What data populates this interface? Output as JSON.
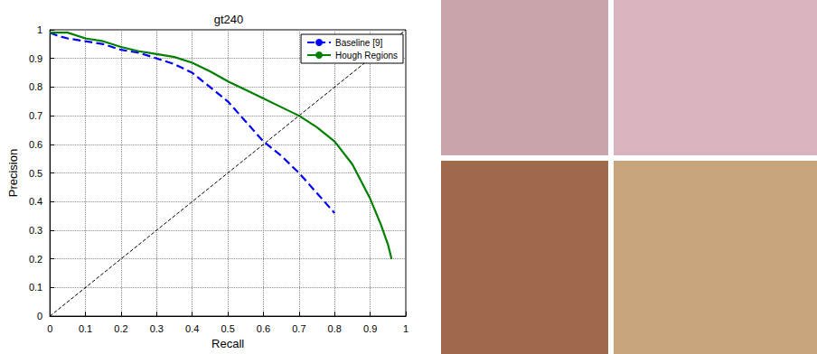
{
  "chart_data": {
    "type": "line",
    "title": "gt240",
    "x_label": "Recall",
    "y_label": "Precision",
    "xlim": [
      0,
      1
    ],
    "ylim": [
      0,
      1
    ],
    "xticks": [
      0,
      0.1,
      0.2,
      0.3,
      0.4,
      0.5,
      0.6,
      0.7,
      0.8,
      0.9,
      1
    ],
    "yticks": [
      0,
      0.1,
      0.2,
      0.3,
      0.4,
      0.5,
      0.6,
      0.7,
      0.8,
      0.9,
      1
    ],
    "grid": true,
    "legend": "upper right",
    "series": [
      {
        "name": "Baseline [9]",
        "color": "#0000ff",
        "line_style": "dashed",
        "x": [
          0,
          0.02,
          0.05,
          0.1,
          0.15,
          0.2,
          0.25,
          0.3,
          0.35,
          0.4,
          0.45,
          0.5,
          0.55,
          0.6,
          0.65,
          0.7,
          0.75,
          0.8
        ],
        "values": [
          0.99,
          0.98,
          0.97,
          0.96,
          0.95,
          0.93,
          0.92,
          0.9,
          0.88,
          0.85,
          0.8,
          0.75,
          0.68,
          0.61,
          0.56,
          0.5,
          0.43,
          0.36
        ]
      },
      {
        "name": "Hough Regions",
        "color": "#008000",
        "line_style": "solid",
        "x": [
          0,
          0.05,
          0.1,
          0.15,
          0.2,
          0.25,
          0.3,
          0.35,
          0.4,
          0.45,
          0.5,
          0.55,
          0.6,
          0.65,
          0.7,
          0.75,
          0.8,
          0.85,
          0.9,
          0.93,
          0.95,
          0.96
        ],
        "values": [
          0.99,
          0.99,
          0.97,
          0.96,
          0.94,
          0.925,
          0.915,
          0.905,
          0.885,
          0.855,
          0.82,
          0.79,
          0.76,
          0.73,
          0.7,
          0.66,
          0.61,
          0.53,
          0.41,
          0.32,
          0.25,
          0.2
        ]
      },
      {
        "color": "#000000",
        "line_style": "dashed",
        "x": [
          0,
          1
        ],
        "values": [
          0,
          1
        ]
      }
    ]
  }
}
